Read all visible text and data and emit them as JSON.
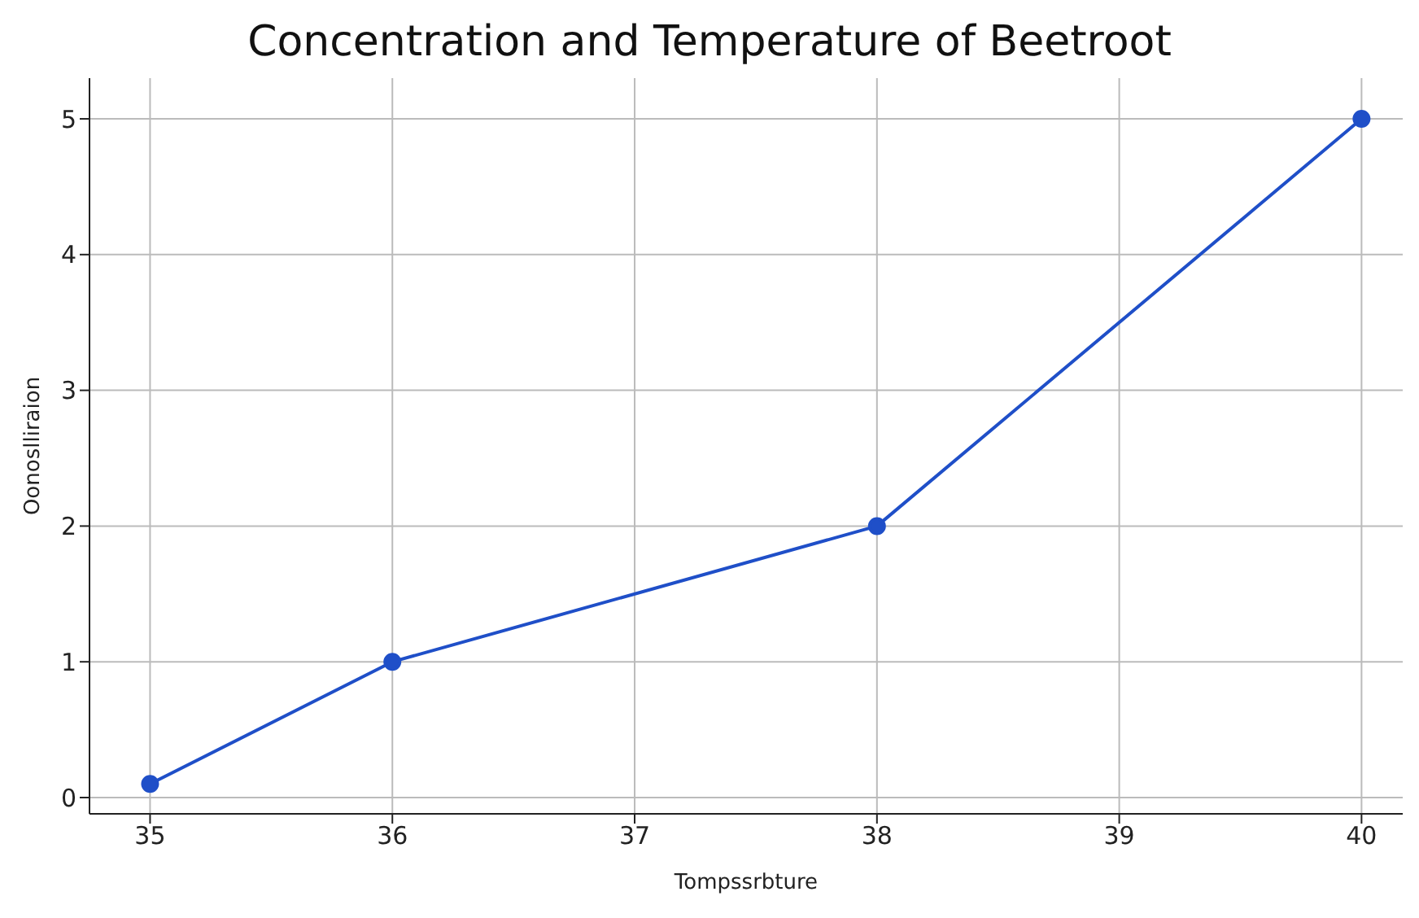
{
  "chart_data": {
    "type": "line",
    "title": "Concentration and Temperature of Beetroot",
    "xlabel": "Tompssrbture",
    "ylabel": "Oonoslliraion",
    "series": [
      {
        "color": "#1f4fc8",
        "x": [
          35,
          36,
          38,
          40
        ],
        "values": [
          0.1,
          1,
          2,
          5
        ]
      }
    ],
    "xlim": [
      34.75,
      40.17
    ],
    "xticks": [
      35,
      36,
      37,
      38,
      39,
      40
    ],
    "ylim": [
      -0.12,
      5.3
    ],
    "yticks": [
      0,
      1,
      2,
      3,
      4,
      5
    ],
    "grid": true,
    "marker": "circle",
    "line_style": "solid"
  }
}
